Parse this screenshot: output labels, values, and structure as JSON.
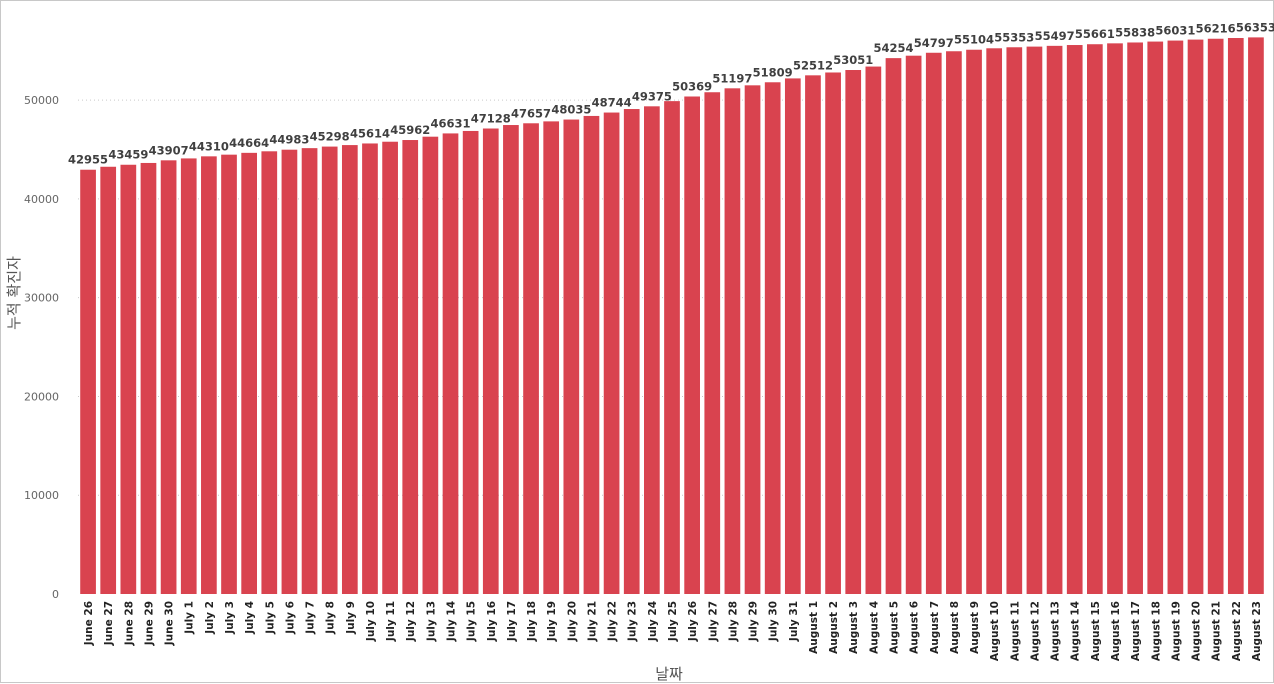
{
  "chart_data": {
    "type": "bar",
    "xlabel": "날짜",
    "ylabel": "누적 확진자",
    "ylim": [
      0,
      57000
    ],
    "yticks": [
      0,
      10000,
      20000,
      30000,
      40000,
      50000
    ],
    "grid": true,
    "bar_color": "#d9434f",
    "categories": [
      "June 26",
      "June 27",
      "June 28",
      "June 29",
      "June 30",
      "July 1",
      "July 2",
      "July 3",
      "July 4",
      "July 5",
      "July 6",
      "July 7",
      "July 8",
      "July 9",
      "July 10",
      "July 11",
      "July 12",
      "July 13",
      "July 14",
      "July 15",
      "July 16",
      "July 17",
      "July 18",
      "July 19",
      "July 20",
      "July 21",
      "July 22",
      "July 23",
      "July 24",
      "July 25",
      "July 26",
      "July 27",
      "July 28",
      "July 29",
      "July 30",
      "July 31",
      "August 1",
      "August 2",
      "August 3",
      "August 4",
      "August 5",
      "August 6",
      "August 7",
      "August 8",
      "August 9",
      "August 10",
      "August 11",
      "August 12",
      "August 13",
      "August 14",
      "August 15",
      "August 16",
      "August 17",
      "August 18",
      "August 19",
      "August 20",
      "August 21",
      "August 22",
      "August 23"
    ],
    "values": [
      42955,
      43255,
      43459,
      43640,
      43907,
      44100,
      44310,
      44480,
      44664,
      44820,
      44983,
      45140,
      45298,
      45450,
      45614,
      45790,
      45962,
      46300,
      46631,
      46880,
      47128,
      47480,
      47657,
      47850,
      48035,
      48400,
      48744,
      49100,
      49375,
      49900,
      50369,
      50800,
      51197,
      51500,
      51809,
      52200,
      52512,
      52800,
      53051,
      53400,
      54254,
      54500,
      54797,
      54950,
      55104,
      55250,
      55353,
      55420,
      55497,
      55580,
      55661,
      55750,
      55838,
      55930,
      56031,
      56130,
      56216,
      56290,
      56353
    ],
    "labels": [
      "42955",
      "",
      "43459",
      "",
      "43907",
      "",
      "44310",
      "",
      "44664",
      "",
      "44983",
      "",
      "45298",
      "",
      "45614",
      "",
      "45962",
      "",
      "46631",
      "",
      "47128",
      "",
      "47657",
      "",
      "48035",
      "",
      "48744",
      "",
      "49375",
      "",
      "50369",
      "",
      "51197",
      "",
      "51809",
      "",
      "52512",
      "",
      "53051",
      "",
      "54254",
      "",
      "54797",
      "",
      "55104",
      "",
      "55353",
      "",
      "55497",
      "",
      "55661",
      "",
      "55838",
      "",
      "56031",
      "",
      "56216",
      "",
      "56353"
    ]
  }
}
